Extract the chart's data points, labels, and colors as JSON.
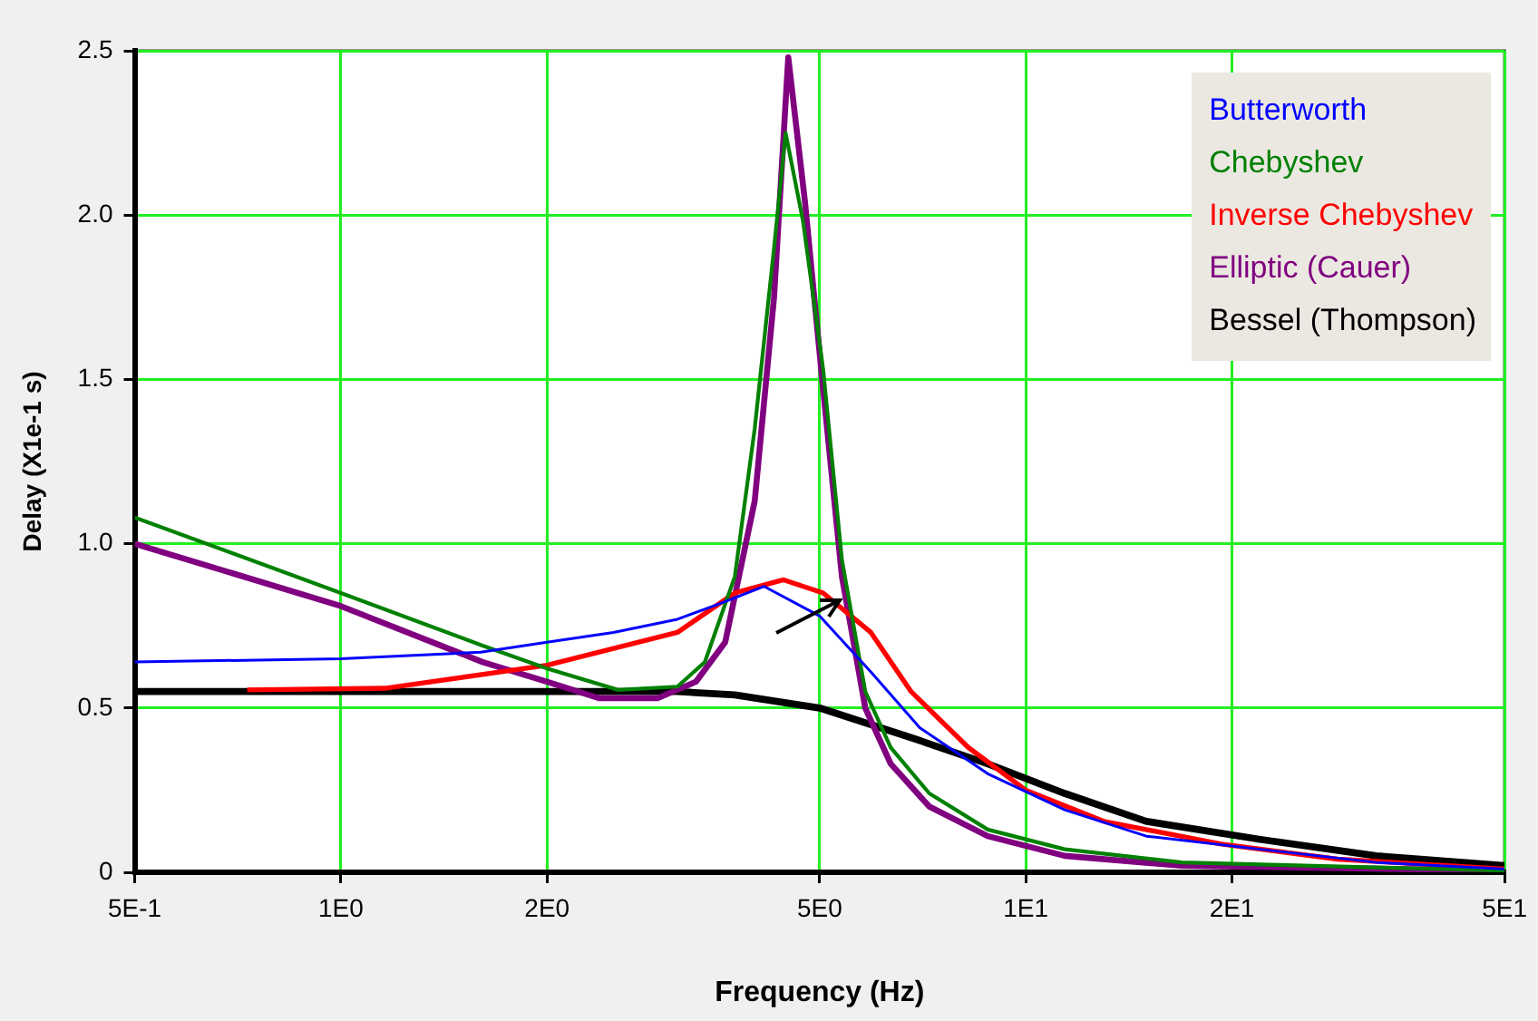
{
  "chart_data": {
    "type": "line",
    "xlabel": "Frequency (Hz)",
    "ylabel": "Delay (X1e-1 s)",
    "log": "x",
    "grid": true,
    "legend": "top right",
    "marker": "none",
    "line_style": "solid",
    "xlim": [
      0.5,
      50
    ],
    "xticks": [
      {
        "value": 0.5,
        "label": "5E-1"
      },
      {
        "value": 1,
        "label": "1E0"
      },
      {
        "value": 2,
        "label": "2E0"
      },
      {
        "value": 5,
        "label": "5E0"
      },
      {
        "value": 10,
        "label": "1E1"
      },
      {
        "value": 20,
        "label": "2E1"
      },
      {
        "value": 50,
        "label": "5E1"
      }
    ],
    "ylim": [
      0,
      2.5
    ],
    "yticks": [
      0,
      0.5,
      {
        "value": 1,
        "label": "1.0"
      },
      1.5,
      {
        "value": 2,
        "label": "2.0"
      },
      2.5
    ],
    "series": [
      {
        "name": "Butterworth",
        "color": "#0000ff",
        "x": [
          0.5,
          1,
          1.6,
          2,
          2.5,
          3.1,
          3.6,
          4.15,
          5,
          5.94,
          7,
          8.8,
          11.4,
          15,
          22,
          32.5,
          50
        ],
        "values": [
          0.64,
          0.65,
          0.67,
          0.7,
          0.73,
          0.77,
          0.82,
          0.87,
          0.78,
          0.61,
          0.44,
          0.3,
          0.19,
          0.11,
          0.07,
          0.03,
          0.01
        ]
      },
      {
        "name": "Chebyshev",
        "color": "#008000",
        "x": [
          0.5,
          1,
          1.61,
          2,
          2.54,
          3.1,
          3.4,
          3.76,
          4.02,
          4.29,
          4.46,
          4.73,
          5.06,
          5.39,
          5.83,
          6.35,
          7.23,
          8.8,
          11.4,
          16.9,
          50
        ],
        "values": [
          1.08,
          0.85,
          0.69,
          0.62,
          0.555,
          0.565,
          0.64,
          0.9,
          1.35,
          1.9,
          2.25,
          1.98,
          1.53,
          0.95,
          0.55,
          0.38,
          0.24,
          0.13,
          0.07,
          0.03,
          0.005
        ]
      },
      {
        "name": "Inverse Chebyshev",
        "color": "#ff0000",
        "x": [
          0.73,
          1.16,
          2,
          3.1,
          3.76,
          4.43,
          5.06,
          5.94,
          6.8,
          8.24,
          10,
          13,
          19.3,
          28.5,
          50
        ],
        "values": [
          0.555,
          0.56,
          0.63,
          0.73,
          0.85,
          0.89,
          0.85,
          0.73,
          0.55,
          0.38,
          0.25,
          0.155,
          0.086,
          0.04,
          0.01
        ]
      },
      {
        "name": "Elliptic (Cauer)",
        "color": "#800080",
        "x": [
          0.5,
          1,
          1.61,
          2,
          2.38,
          2.9,
          3.3,
          3.64,
          4.02,
          4.29,
          4.5,
          4.76,
          5.06,
          5.39,
          5.83,
          6.35,
          7.23,
          8.8,
          11.4,
          16.9,
          50
        ],
        "values": [
          1.0,
          0.81,
          0.64,
          0.58,
          0.53,
          0.53,
          0.58,
          0.7,
          1.13,
          1.75,
          2.48,
          2.04,
          1.47,
          0.9,
          0.5,
          0.33,
          0.2,
          0.11,
          0.05,
          0.02,
          0.005
        ]
      },
      {
        "name": "Bessel (Thompson)",
        "color": "#000000",
        "x": [
          0.5,
          1,
          2,
          3.1,
          3.76,
          5,
          6.8,
          8.8,
          11.4,
          15,
          22,
          32.5,
          50
        ],
        "values": [
          0.55,
          0.55,
          0.55,
          0.55,
          0.54,
          0.5,
          0.41,
          0.33,
          0.24,
          0.155,
          0.1,
          0.05,
          0.02
        ]
      }
    ]
  }
}
